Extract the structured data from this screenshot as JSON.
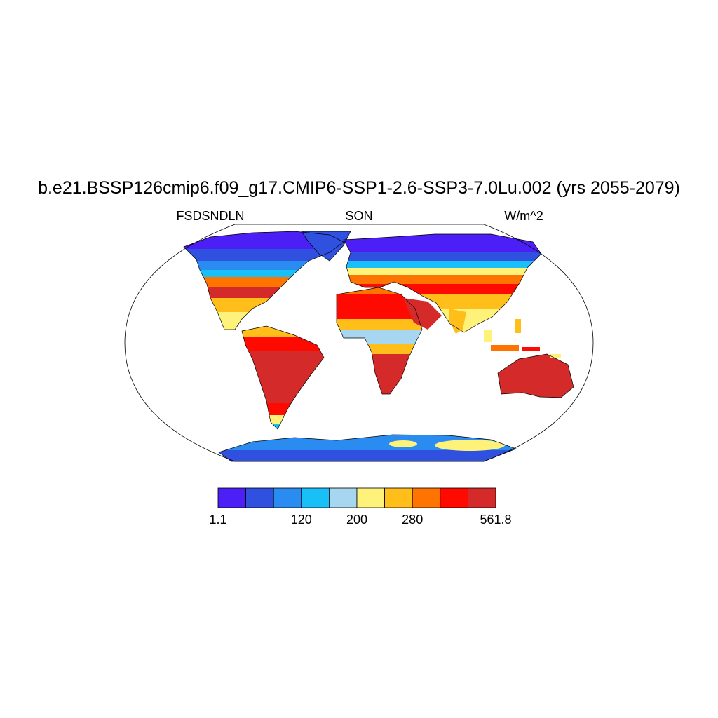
{
  "header": {
    "title": "b.e21.BSSP126cmip6.f09_g17.CMIP6-SSP1-2.6-SSP3-7.0Lu.002 (yrs 2055-2079)",
    "left": "FSDSNDLN",
    "center": "SON",
    "right": "W/m^2"
  },
  "colorbar": {
    "colors": [
      "#4b1ff5",
      "#3050e0",
      "#2a8cf0",
      "#19c0f8",
      "#a6d6f0",
      "#fff27a",
      "#ffbe1a",
      "#ff7400",
      "#ff0a00",
      "#d42a2a"
    ],
    "labels": [
      1.1,
      null,
      null,
      120,
      null,
      200,
      null,
      280,
      null,
      null,
      561.8
    ]
  }
}
